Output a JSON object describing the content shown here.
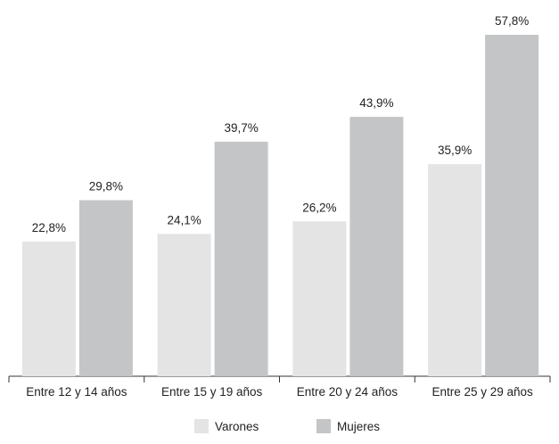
{
  "chart_data": {
    "type": "bar",
    "title": "",
    "xlabel": "",
    "ylabel": "",
    "ylim": [
      0,
      60
    ],
    "grid": false,
    "legend_position": "bottom",
    "categories": [
      "Entre 12 y 14 años",
      "Entre 15 y 19 años",
      "Entre 20 y 24 años",
      "Entre 25 y 29 años"
    ],
    "series": [
      {
        "name": "Varones",
        "color": "#e3e4e3",
        "values": [
          22.8,
          24.1,
          26.2,
          35.9
        ],
        "labels": [
          "22,8%",
          "24,1%",
          "26,2%",
          "35,9%"
        ]
      },
      {
        "name": "Mujeres",
        "color": "#c4c5c6",
        "values": [
          29.8,
          39.7,
          43.9,
          57.8
        ],
        "labels": [
          "29,8%",
          "39,7%",
          "43,9%",
          "57,8%"
        ]
      }
    ]
  }
}
